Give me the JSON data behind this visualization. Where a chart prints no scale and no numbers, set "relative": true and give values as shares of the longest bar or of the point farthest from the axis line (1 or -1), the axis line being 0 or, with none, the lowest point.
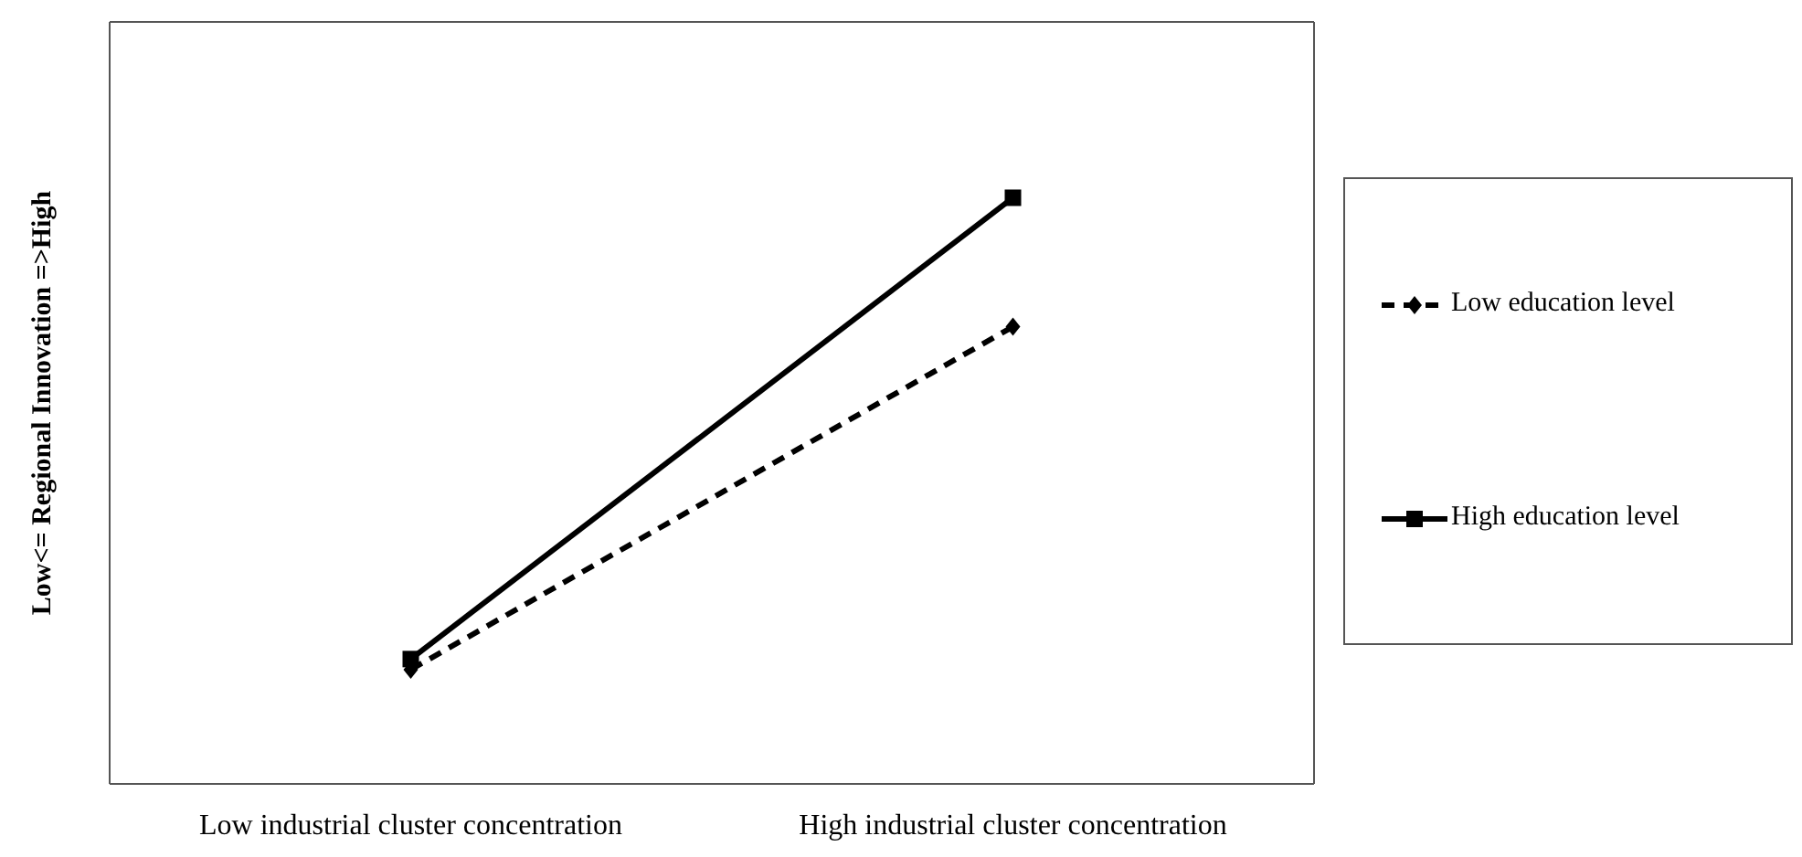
{
  "chart_data": {
    "type": "line",
    "relative": true,
    "ylabel": "Low<= Regional Innovation =>High",
    "categories": [
      "Low industrial cluster concentration",
      "High industrial cluster concentration"
    ],
    "legend": "right",
    "grid": false,
    "series": [
      {
        "name": "Low education level",
        "color": "#000000",
        "values": [
          0.195,
          0.78
        ],
        "marker": "diamond",
        "line_style": "dashed"
      },
      {
        "name": "High education level",
        "color": "#000000",
        "values": [
          0.213,
          1
        ],
        "marker": "square",
        "line_style": "solid"
      }
    ]
  }
}
